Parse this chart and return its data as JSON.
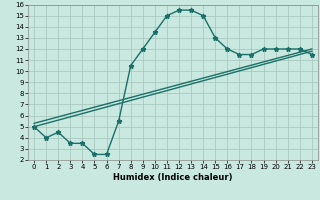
{
  "xlabel": "Humidex (Indice chaleur)",
  "ylabel": "",
  "bg_color": "#c8e8e0",
  "grid_color": "#a8c8c0",
  "line_color": "#1a7068",
  "xlim": [
    -0.5,
    23.5
  ],
  "ylim": [
    2,
    16
  ],
  "xticks": [
    0,
    1,
    2,
    3,
    4,
    5,
    6,
    7,
    8,
    9,
    10,
    11,
    12,
    13,
    14,
    15,
    16,
    17,
    18,
    19,
    20,
    21,
    22,
    23
  ],
  "yticks": [
    2,
    3,
    4,
    5,
    6,
    7,
    8,
    9,
    10,
    11,
    12,
    13,
    14,
    15,
    16
  ],
  "curve1_x": [
    0,
    1,
    2,
    3,
    4,
    5,
    6,
    7,
    8,
    9,
    10,
    11,
    12,
    13,
    14,
    15,
    16,
    17,
    18,
    19,
    20,
    21,
    22,
    23
  ],
  "curve1_y": [
    5.0,
    4.0,
    4.5,
    3.5,
    3.5,
    2.5,
    2.5,
    5.5,
    10.5,
    12.0,
    13.5,
    15.0,
    15.5,
    15.5,
    15.0,
    13.0,
    12.0,
    11.5,
    11.5,
    12.0,
    12.0,
    12.0,
    12.0,
    11.5
  ],
  "curve2_x": [
    0,
    23
  ],
  "curve2_y": [
    5.0,
    11.8
  ],
  "curve3_x": [
    0,
    23
  ],
  "curve3_y": [
    5.3,
    12.0
  ],
  "figsize": [
    3.2,
    2.0
  ],
  "dpi": 100
}
